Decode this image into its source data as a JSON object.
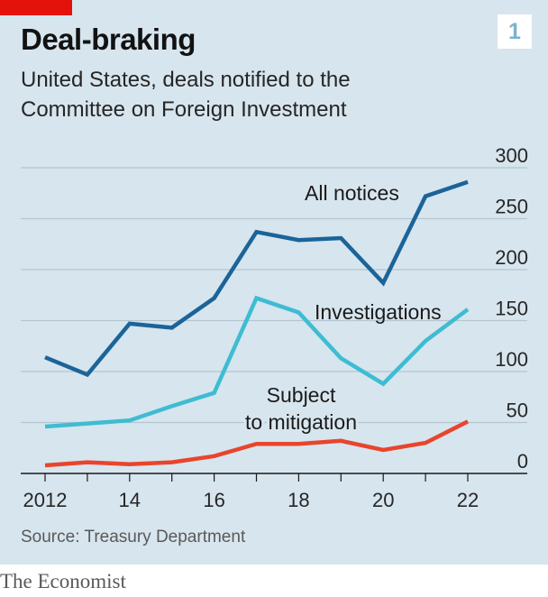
{
  "header": {
    "title": "Deal-braking",
    "subtitle": "United States, deals notified to the Committee on Foreign Investment",
    "chart_number": "1"
  },
  "footer": {
    "source": "Source: Treasury Department",
    "brand": "The Economist"
  },
  "colors": {
    "background": "#d7e5ee",
    "brand_red": "#e3120b",
    "all_notices": "#1b6499",
    "investigations": "#3ebcd2",
    "mitigation": "#e8452c",
    "gridline": "#b4c5d0"
  },
  "chart_data": {
    "type": "line",
    "title": "Deal-braking",
    "x": [
      2012,
      2013,
      2014,
      2015,
      2016,
      2017,
      2018,
      2019,
      2020,
      2021,
      2022
    ],
    "x_tick_values": [
      2012,
      2014,
      2016,
      2018,
      2020,
      2022
    ],
    "x_tick_labels": [
      "2012",
      "14",
      "16",
      "18",
      "20",
      "22"
    ],
    "xlim": [
      2011.75,
      2022.6
    ],
    "ylim": [
      0,
      300
    ],
    "y_ticks": [
      0,
      50,
      100,
      150,
      200,
      250,
      300
    ],
    "y_tick_labels": [
      "0",
      "50",
      "100",
      "150",
      "200",
      "250",
      "300"
    ],
    "y_axis_side": "right",
    "grid": true,
    "legend": "direct labels",
    "series": [
      {
        "name": "All notices",
        "label_lines": [
          "All notices"
        ],
        "color_key": "all_notices",
        "values": [
          114,
          97,
          147,
          143,
          172,
          237,
          229,
          231,
          187,
          272,
          286
        ]
      },
      {
        "name": "Investigations",
        "label_lines": [
          "Investigations"
        ],
        "color_key": "investigations",
        "values": [
          46,
          49,
          52,
          66,
          79,
          172,
          158,
          113,
          88,
          130,
          161
        ]
      },
      {
        "name": "Subject to mitigation",
        "label_lines": [
          "Subject",
          "to mitigation"
        ],
        "color_key": "mitigation",
        "values": [
          8,
          11,
          9,
          11,
          17,
          29,
          29,
          32,
          23,
          30,
          51
        ]
      }
    ]
  }
}
